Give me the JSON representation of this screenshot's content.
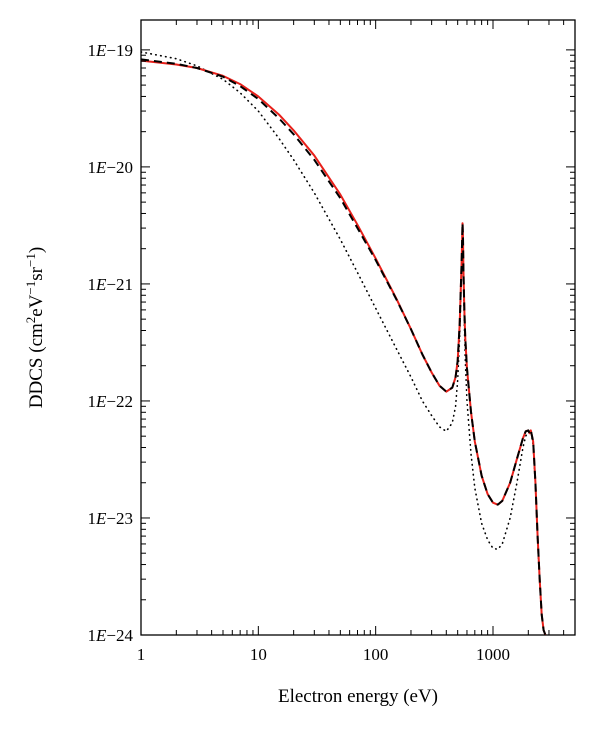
{
  "chart_data": {
    "type": "line",
    "xlabel": "Electron energy (eV)",
    "ylabel_parts": [
      "DDCS (cm",
      "2",
      "eV",
      "−1",
      "sr",
      "−1",
      ")"
    ],
    "x_scale": "log",
    "y_scale": "log",
    "xlim": [
      1,
      5000
    ],
    "ylim": [
      1e-24,
      1.8e-19
    ],
    "x_ticks": [
      {
        "value": 1,
        "label": "1"
      },
      {
        "value": 10,
        "label": "10"
      },
      {
        "value": 100,
        "label": "100"
      },
      {
        "value": 1000,
        "label": "1000"
      }
    ],
    "y_ticks": [
      {
        "value": 1e-19,
        "prefix": "1",
        "e": "E",
        "suffix": "−19"
      },
      {
        "value": 1e-20,
        "prefix": "1",
        "e": "E",
        "suffix": "−20"
      },
      {
        "value": 1e-21,
        "prefix": "1",
        "e": "E",
        "suffix": "−21"
      },
      {
        "value": 1e-22,
        "prefix": "1",
        "e": "E",
        "suffix": "−22"
      },
      {
        "value": 1e-23,
        "prefix": "1",
        "e": "E",
        "suffix": "−23"
      },
      {
        "value": 1e-24,
        "prefix": "1",
        "e": "E",
        "suffix": "−24"
      }
    ],
    "grid": false,
    "legend": "none",
    "series": [
      {
        "style": "solid",
        "color": "#e8201a",
        "x": [
          1,
          2,
          3,
          5,
          7,
          10,
          15,
          20,
          30,
          50,
          70,
          100,
          150,
          200,
          250,
          300,
          350,
          400,
          450,
          480,
          500,
          520,
          540,
          550,
          555,
          560,
          570,
          580,
          600,
          650,
          700,
          800,
          900,
          1000,
          1100,
          1200,
          1400,
          1600,
          1800,
          1900,
          2000,
          2050,
          2100,
          2200,
          2300,
          2400,
          2500,
          2600,
          2700,
          2800
        ],
        "y": [
          8.1e-20,
          7.5e-20,
          7e-20,
          6e-20,
          5.1e-20,
          4e-20,
          2.8e-20,
          2.05e-20,
          1.25e-20,
          5.8e-21,
          3.2e-21,
          1.65e-21,
          7.5e-22,
          4.1e-22,
          2.5e-22,
          1.75e-22,
          1.35e-22,
          1.2e-22,
          1.3e-22,
          1.6e-22,
          2.2e-22,
          4.5e-22,
          1.5e-21,
          3.3e-21,
          2.5e-21,
          1.3e-21,
          6e-22,
          3.5e-22,
          1.9e-22,
          8e-23,
          4.5e-23,
          2.3e-23,
          1.6e-23,
          1.35e-23,
          1.3e-23,
          1.4e-23,
          2e-23,
          3.2e-23,
          4.8e-23,
          5.5e-23,
          5.6e-23,
          5.3e-23,
          5.6e-23,
          4.5e-23,
          2e-23,
          7e-24,
          3e-24,
          1.5e-24,
          1.1e-24,
          1e-24
        ]
      },
      {
        "style": "dashed",
        "color": "#000000",
        "x": [
          1,
          2,
          3,
          5,
          7,
          10,
          15,
          20,
          30,
          50,
          70,
          100,
          150,
          200,
          250,
          300,
          350,
          400,
          450,
          480,
          500,
          520,
          540,
          550,
          555,
          560,
          570,
          580,
          600,
          650,
          700,
          800,
          900,
          1000,
          1100,
          1200,
          1400,
          1600,
          1800,
          1900,
          2000,
          2050,
          2100,
          2200,
          2300,
          2400,
          2500,
          2600,
          2700,
          2800
        ],
        "y": [
          8.3e-20,
          7.6e-20,
          7e-20,
          5.9e-20,
          4.9e-20,
          3.8e-20,
          2.6e-20,
          1.9e-20,
          1.15e-20,
          5.4e-21,
          3e-21,
          1.6e-21,
          7.4e-22,
          4.1e-22,
          2.5e-22,
          1.75e-22,
          1.35e-22,
          1.2e-22,
          1.3e-22,
          1.6e-22,
          2.2e-22,
          4.5e-22,
          1.5e-21,
          3.3e-21,
          2.5e-21,
          1.3e-21,
          6e-22,
          3.5e-22,
          1.9e-22,
          8e-23,
          4.5e-23,
          2.3e-23,
          1.6e-23,
          1.35e-23,
          1.3e-23,
          1.4e-23,
          2e-23,
          3.2e-23,
          4.8e-23,
          5.5e-23,
          5.6e-23,
          5.3e-23,
          5.6e-23,
          4.5e-23,
          2e-23,
          7e-24,
          3e-24,
          1.5e-24,
          1.1e-24,
          1e-24
        ]
      },
      {
        "style": "dotted",
        "color": "#000000",
        "x": [
          1,
          2,
          3,
          5,
          7,
          10,
          15,
          20,
          30,
          50,
          70,
          100,
          150,
          200,
          250,
          300,
          350,
          400,
          450,
          480,
          500,
          520,
          540,
          550,
          555,
          560,
          570,
          580,
          600,
          650,
          700,
          800,
          900,
          1000,
          1100,
          1200,
          1400,
          1600,
          1800,
          1900,
          2000,
          2050,
          2100,
          2200,
          2300,
          2400,
          2500,
          2600,
          2700,
          2800
        ],
        "y": [
          9.6e-20,
          8.4e-20,
          7.3e-20,
          5.6e-20,
          4.3e-20,
          3e-20,
          1.75e-20,
          1.15e-20,
          6e-21,
          2.4e-21,
          1.25e-21,
          6.2e-22,
          2.8e-22,
          1.6e-22,
          1e-22,
          7.5e-23,
          6e-23,
          5.5e-23,
          6.5e-23,
          9e-23,
          1.5e-22,
          3.5e-22,
          1.3e-21,
          3e-21,
          2.3e-21,
          1.1e-21,
          4.5e-22,
          2.3e-22,
          1e-22,
          3.5e-23,
          1.8e-23,
          9e-24,
          6.5e-24,
          5.5e-24,
          5.4e-24,
          6e-24,
          1e-23,
          2e-23,
          4e-23,
          5e-23,
          5.5e-23,
          5.4e-23,
          5.5e-23,
          4.2e-23,
          1.9e-23,
          6.5e-24,
          2.8e-24,
          1.5e-24,
          1.1e-24,
          1e-24
        ]
      }
    ]
  }
}
